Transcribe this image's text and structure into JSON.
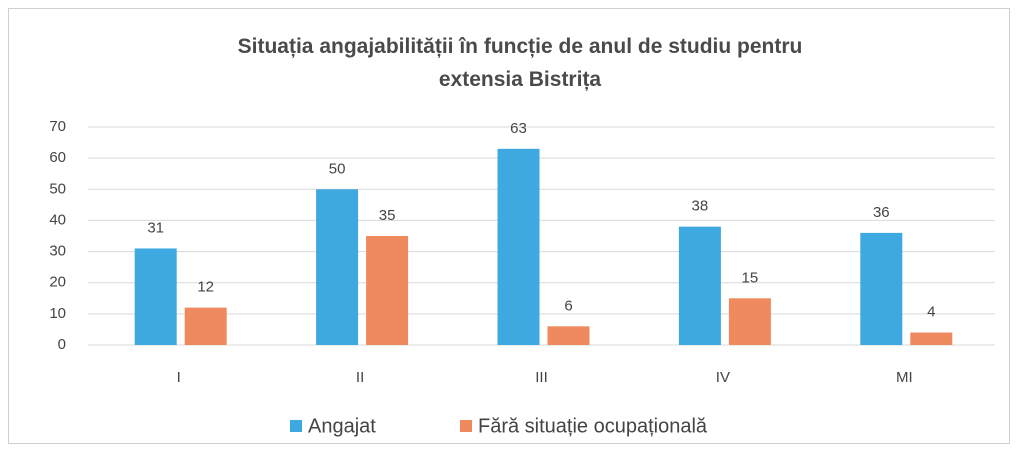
{
  "chart_data": {
    "type": "bar",
    "title": "Situația angajabilității în funcție de anul de studiu pentru extensia Bistrița",
    "categories": [
      "I",
      "II",
      "III",
      "IV",
      "MI"
    ],
    "series": [
      {
        "name": "Angajat",
        "color": "#3ea8e0",
        "values": [
          31,
          50,
          63,
          38,
          36
        ]
      },
      {
        "name": "Fără situație ocupațională",
        "color": "#ef8a5e",
        "values": [
          12,
          35,
          6,
          15,
          4
        ]
      }
    ],
    "ylim": [
      0,
      70
    ],
    "yticks": [
      0,
      10,
      20,
      30,
      40,
      50,
      60,
      70
    ],
    "grid": true,
    "legend": "bottom"
  }
}
